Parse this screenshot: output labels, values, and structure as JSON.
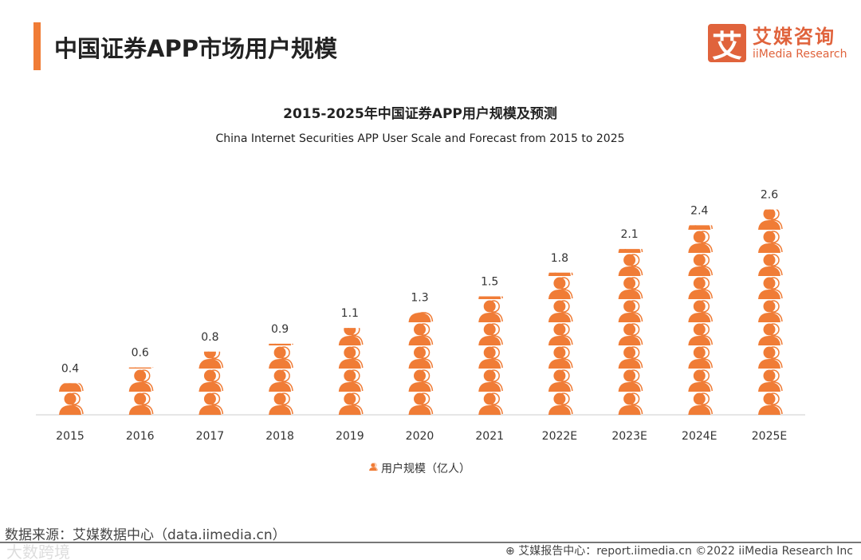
{
  "header": {
    "title": "中国证券APP市场用户规模",
    "logo_cn": "艾媒咨询",
    "logo_en": "iiMedia Research",
    "logo_mark": "艾"
  },
  "chart_data": {
    "type": "bar",
    "title": "2015-2025年中国证券APP用户规模及预测",
    "subtitle": "China Internet Securities APP User Scale and Forecast from 2015 to 2025",
    "categories": [
      "2015",
      "2016",
      "2017",
      "2018",
      "2019",
      "2020",
      "2021",
      "2022E",
      "2023E",
      "2024E",
      "2025E"
    ],
    "values": [
      0.4,
      0.6,
      0.8,
      0.9,
      1.1,
      1.3,
      1.5,
      1.8,
      2.1,
      2.4,
      2.6
    ],
    "series": [
      {
        "name": "用户规模（亿人）",
        "color": "#f07c36"
      }
    ],
    "ylim": [
      0,
      2.6
    ],
    "grid": false,
    "legend": "bottom-center"
  },
  "footer": {
    "source": "数据来源：艾媒数据中心（data.iimedia.cn）",
    "report": "艾媒报告中心：report.iimedia.cn  ©2022  iiMedia Research  Inc",
    "watermark": "大数跨境"
  }
}
